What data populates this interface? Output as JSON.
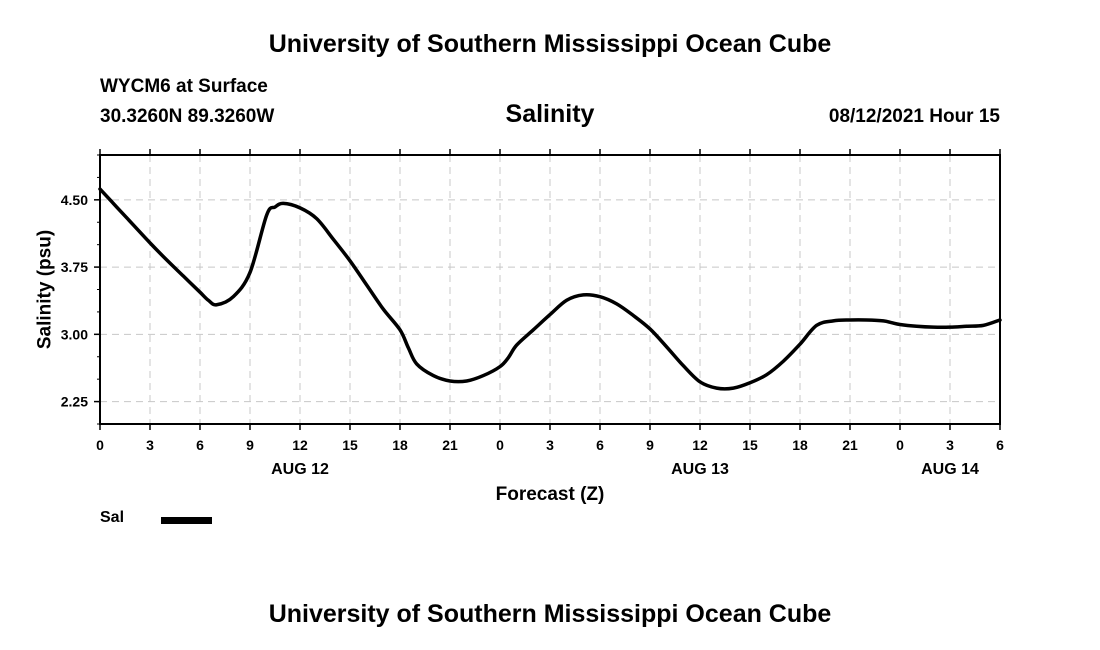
{
  "header": {
    "title": "University of Southern Mississippi Ocean Cube",
    "station": "WYCM6 at Surface",
    "coords": "30.3260N  89.3260W",
    "run_time": "08/12/2021 Hour 15"
  },
  "footer": {
    "title": "University of Southern Mississippi Ocean Cube"
  },
  "legend": {
    "label": "Sal"
  },
  "colors": {
    "line": "#000000",
    "grid": "#c8c8c8",
    "background": "#ffffff"
  },
  "chart_data": {
    "type": "line",
    "title": "Salinity",
    "xlabel": "Forecast (Z)",
    "ylabel": "Salinity (psu)",
    "ylim": [
      2.0,
      5.0
    ],
    "yticks": [
      "2.25",
      "3.00",
      "3.75",
      "4.50"
    ],
    "ytick_values": [
      2.25,
      3.0,
      3.75,
      4.5
    ],
    "xlim": [
      0,
      54
    ],
    "xtick_values": [
      0,
      3,
      6,
      9,
      12,
      15,
      18,
      21,
      24,
      27,
      30,
      33,
      36,
      39,
      42,
      45,
      48,
      51,
      54
    ],
    "xticks": [
      "0",
      "3",
      "6",
      "9",
      "12",
      "15",
      "18",
      "21",
      "0",
      "3",
      "6",
      "9",
      "12",
      "15",
      "18",
      "21",
      "0",
      "3",
      "6"
    ],
    "date_labels": [
      {
        "label": "AUG 12",
        "x": 12
      },
      {
        "label": "AUG 13",
        "x": 36
      },
      {
        "label": "AUG 14",
        "x": 51
      }
    ],
    "grid": true,
    "legend_position": "bottom-left",
    "series": [
      {
        "name": "Sal",
        "x": [
          0,
          1,
          2,
          3,
          4,
          5,
          6,
          6.5,
          7,
          8,
          9,
          10,
          10.5,
          11,
          12,
          13,
          14,
          15,
          16,
          17,
          18,
          18.5,
          19,
          20,
          21,
          22,
          23,
          24,
          24.5,
          25,
          26,
          27,
          28,
          29,
          30,
          31,
          32,
          33,
          34,
          35,
          36,
          37,
          38,
          39,
          40,
          41,
          42,
          43,
          44,
          45,
          46,
          47,
          47.5,
          48,
          49,
          50,
          51,
          52,
          53,
          54
        ],
        "y": [
          4.62,
          4.42,
          4.22,
          4.02,
          3.83,
          3.65,
          3.47,
          3.38,
          3.33,
          3.42,
          3.69,
          4.33,
          4.42,
          4.46,
          4.41,
          4.29,
          4.06,
          3.82,
          3.55,
          3.28,
          3.05,
          2.85,
          2.67,
          2.54,
          2.48,
          2.48,
          2.54,
          2.64,
          2.74,
          2.88,
          3.05,
          3.22,
          3.38,
          3.44,
          3.42,
          3.34,
          3.21,
          3.06,
          2.86,
          2.65,
          2.47,
          2.4,
          2.4,
          2.46,
          2.55,
          2.7,
          2.89,
          3.1,
          3.15,
          3.16,
          3.16,
          3.15,
          3.13,
          3.11,
          3.09,
          3.08,
          3.08,
          3.09,
          3.1,
          3.16
        ]
      }
    ]
  }
}
